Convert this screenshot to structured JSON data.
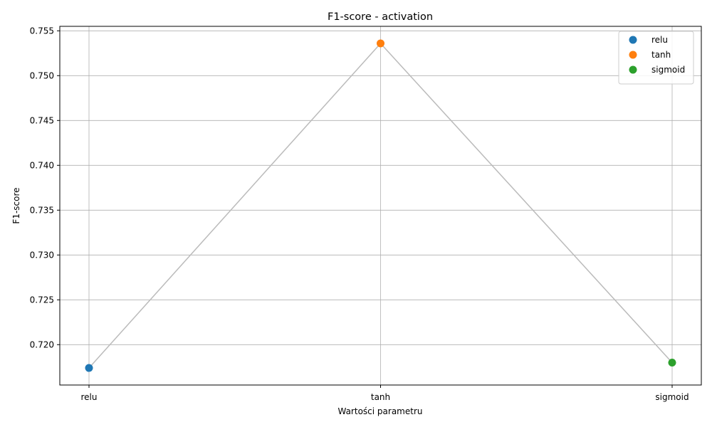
{
  "chart_data": {
    "type": "line",
    "title": "F1-score - activation",
    "xlabel": "Wartości parametru",
    "ylabel": "F1-score",
    "categories": [
      "relu",
      "tanh",
      "sigmoid"
    ],
    "values": [
      0.7174,
      0.7536,
      0.718
    ],
    "point_colors": [
      "#1f77b4",
      "#ff7f0e",
      "#2ca02c"
    ],
    "line_color": "#bbbbbb",
    "ylim": [
      0.7155,
      0.7555
    ],
    "yticks": [
      "0.720",
      "0.725",
      "0.730",
      "0.735",
      "0.740",
      "0.745",
      "0.750",
      "0.755"
    ],
    "grid": true,
    "legend_position": "top-right",
    "legend": [
      "relu",
      "tanh",
      "sigmoid"
    ]
  }
}
